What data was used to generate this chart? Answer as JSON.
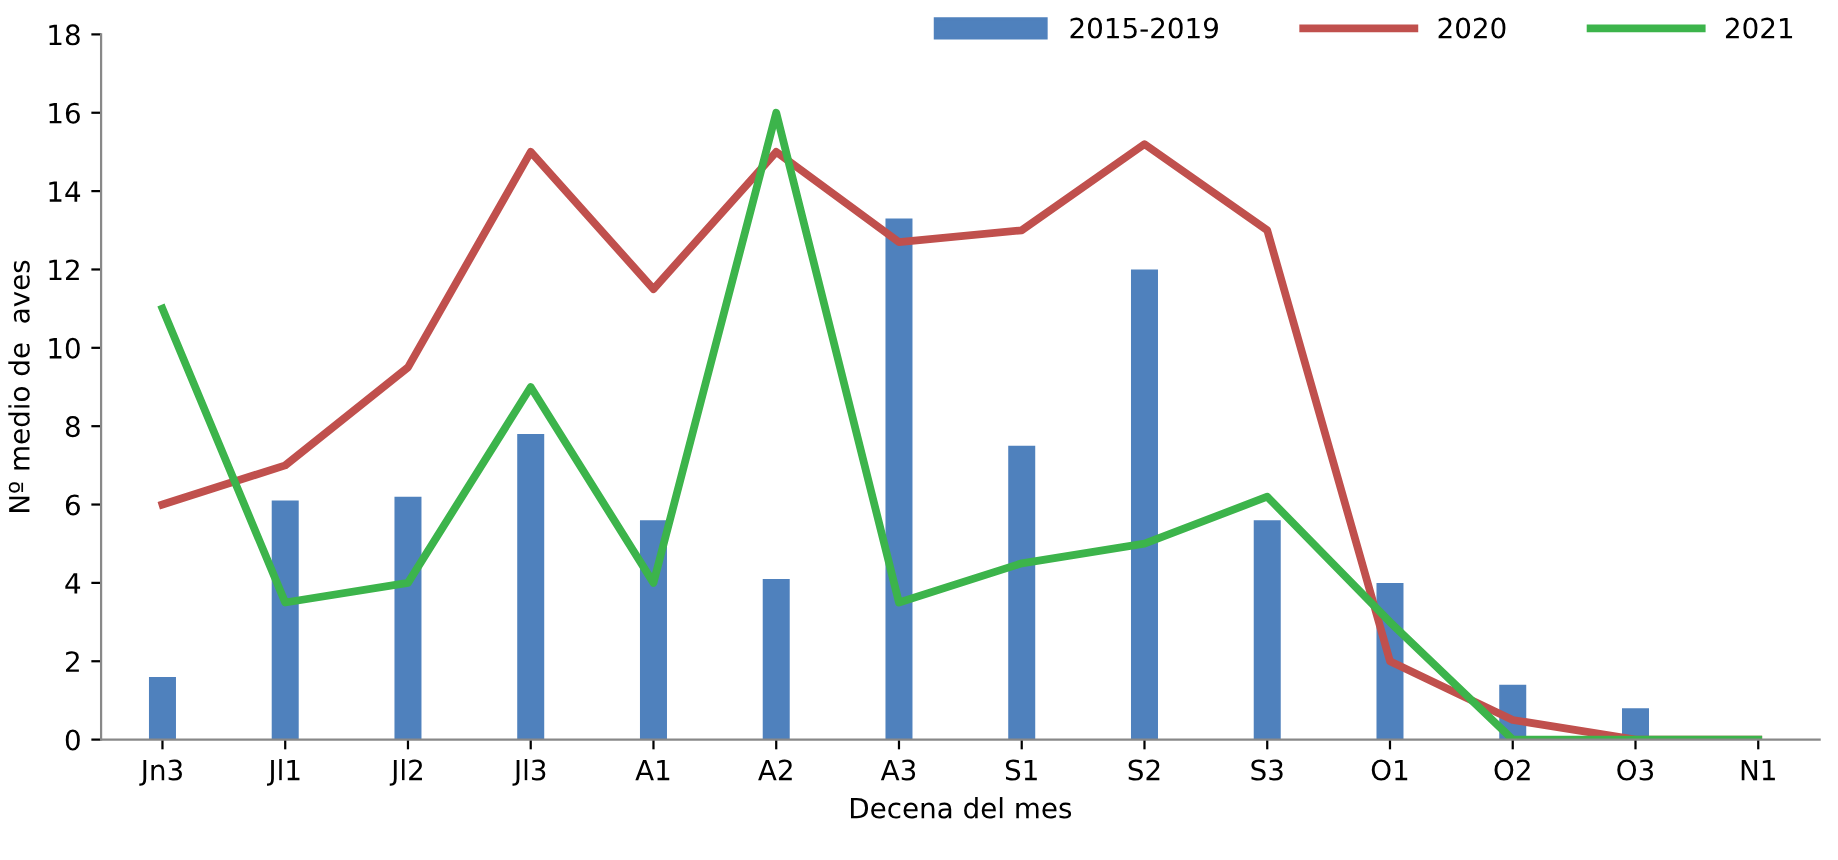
{
  "chart_data": {
    "type": "bar",
    "xlabel": "Decena del mes",
    "ylabel": "Nº medio de  aves",
    "categories": [
      "Jn3",
      "Jl1",
      "Jl2",
      "Jl3",
      "A1",
      "A2",
      "A3",
      "S1",
      "S2",
      "S3",
      "O1",
      "O2",
      "O3",
      "N1"
    ],
    "series": [
      {
        "name": "2015-2019",
        "color": "#4f81bd",
        "values": [
          1.6,
          6.1,
          6.2,
          7.8,
          5.6,
          4.1,
          13.3,
          7.5,
          12,
          5.6,
          4,
          1.4,
          0.8,
          0
        ]
      },
      {
        "name": "2020",
        "type": "line",
        "color": "#c0504d",
        "values": [
          6,
          7,
          9.5,
          15,
          11.5,
          15,
          12.7,
          13,
          15.2,
          13,
          2,
          0.5,
          0,
          0
        ]
      },
      {
        "name": "2021",
        "type": "line",
        "color": "#3cb44b",
        "values": [
          11,
          3.5,
          4,
          9,
          4,
          16,
          3.5,
          4.5,
          5,
          6.2,
          3,
          0,
          0,
          0
        ]
      }
    ],
    "ylim": [
      0,
      18
    ],
    "yticks": [
      0,
      2,
      4,
      6,
      8,
      10,
      12,
      14,
      16,
      18
    ],
    "grid": false,
    "legend": "top right",
    "marker": "none",
    "line_style": "solid"
  }
}
